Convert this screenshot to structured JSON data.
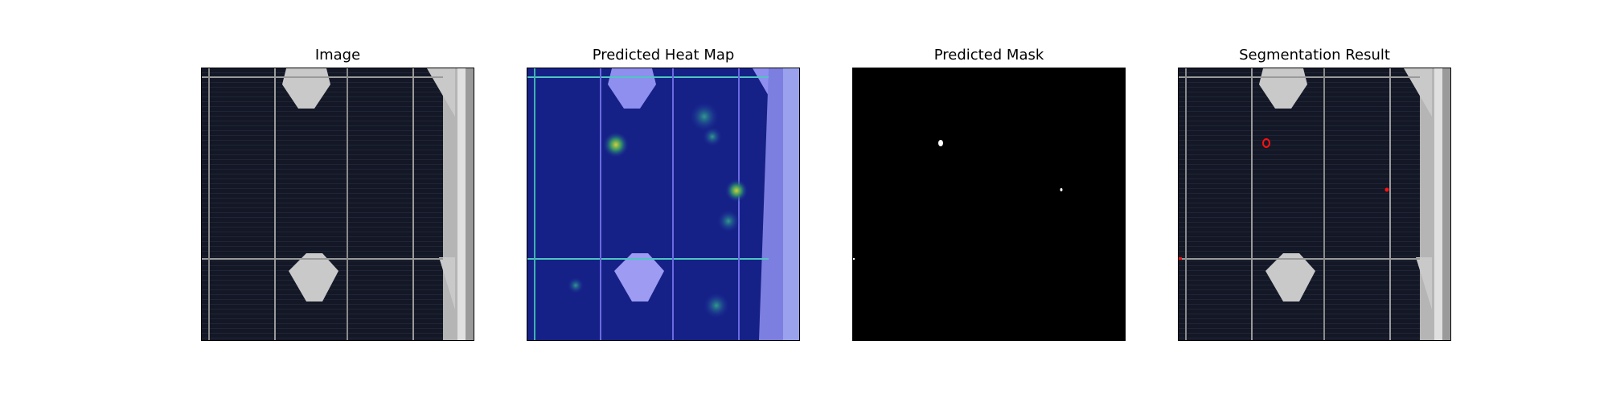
{
  "panels": [
    {
      "title": "Image"
    },
    {
      "title": "Predicted Heat Map"
    },
    {
      "title": "Predicted Mask"
    },
    {
      "title": "Segmentation Result"
    }
  ],
  "colors": {
    "cell_dark": "#141826",
    "frame_gray": "#b8b8b8",
    "heat_blue": "#1c2a9e",
    "heat_light": "#8f8ff0",
    "mask_bg": "#000000",
    "mask_fg": "#ffffff",
    "outline_red": "#ff1010"
  }
}
